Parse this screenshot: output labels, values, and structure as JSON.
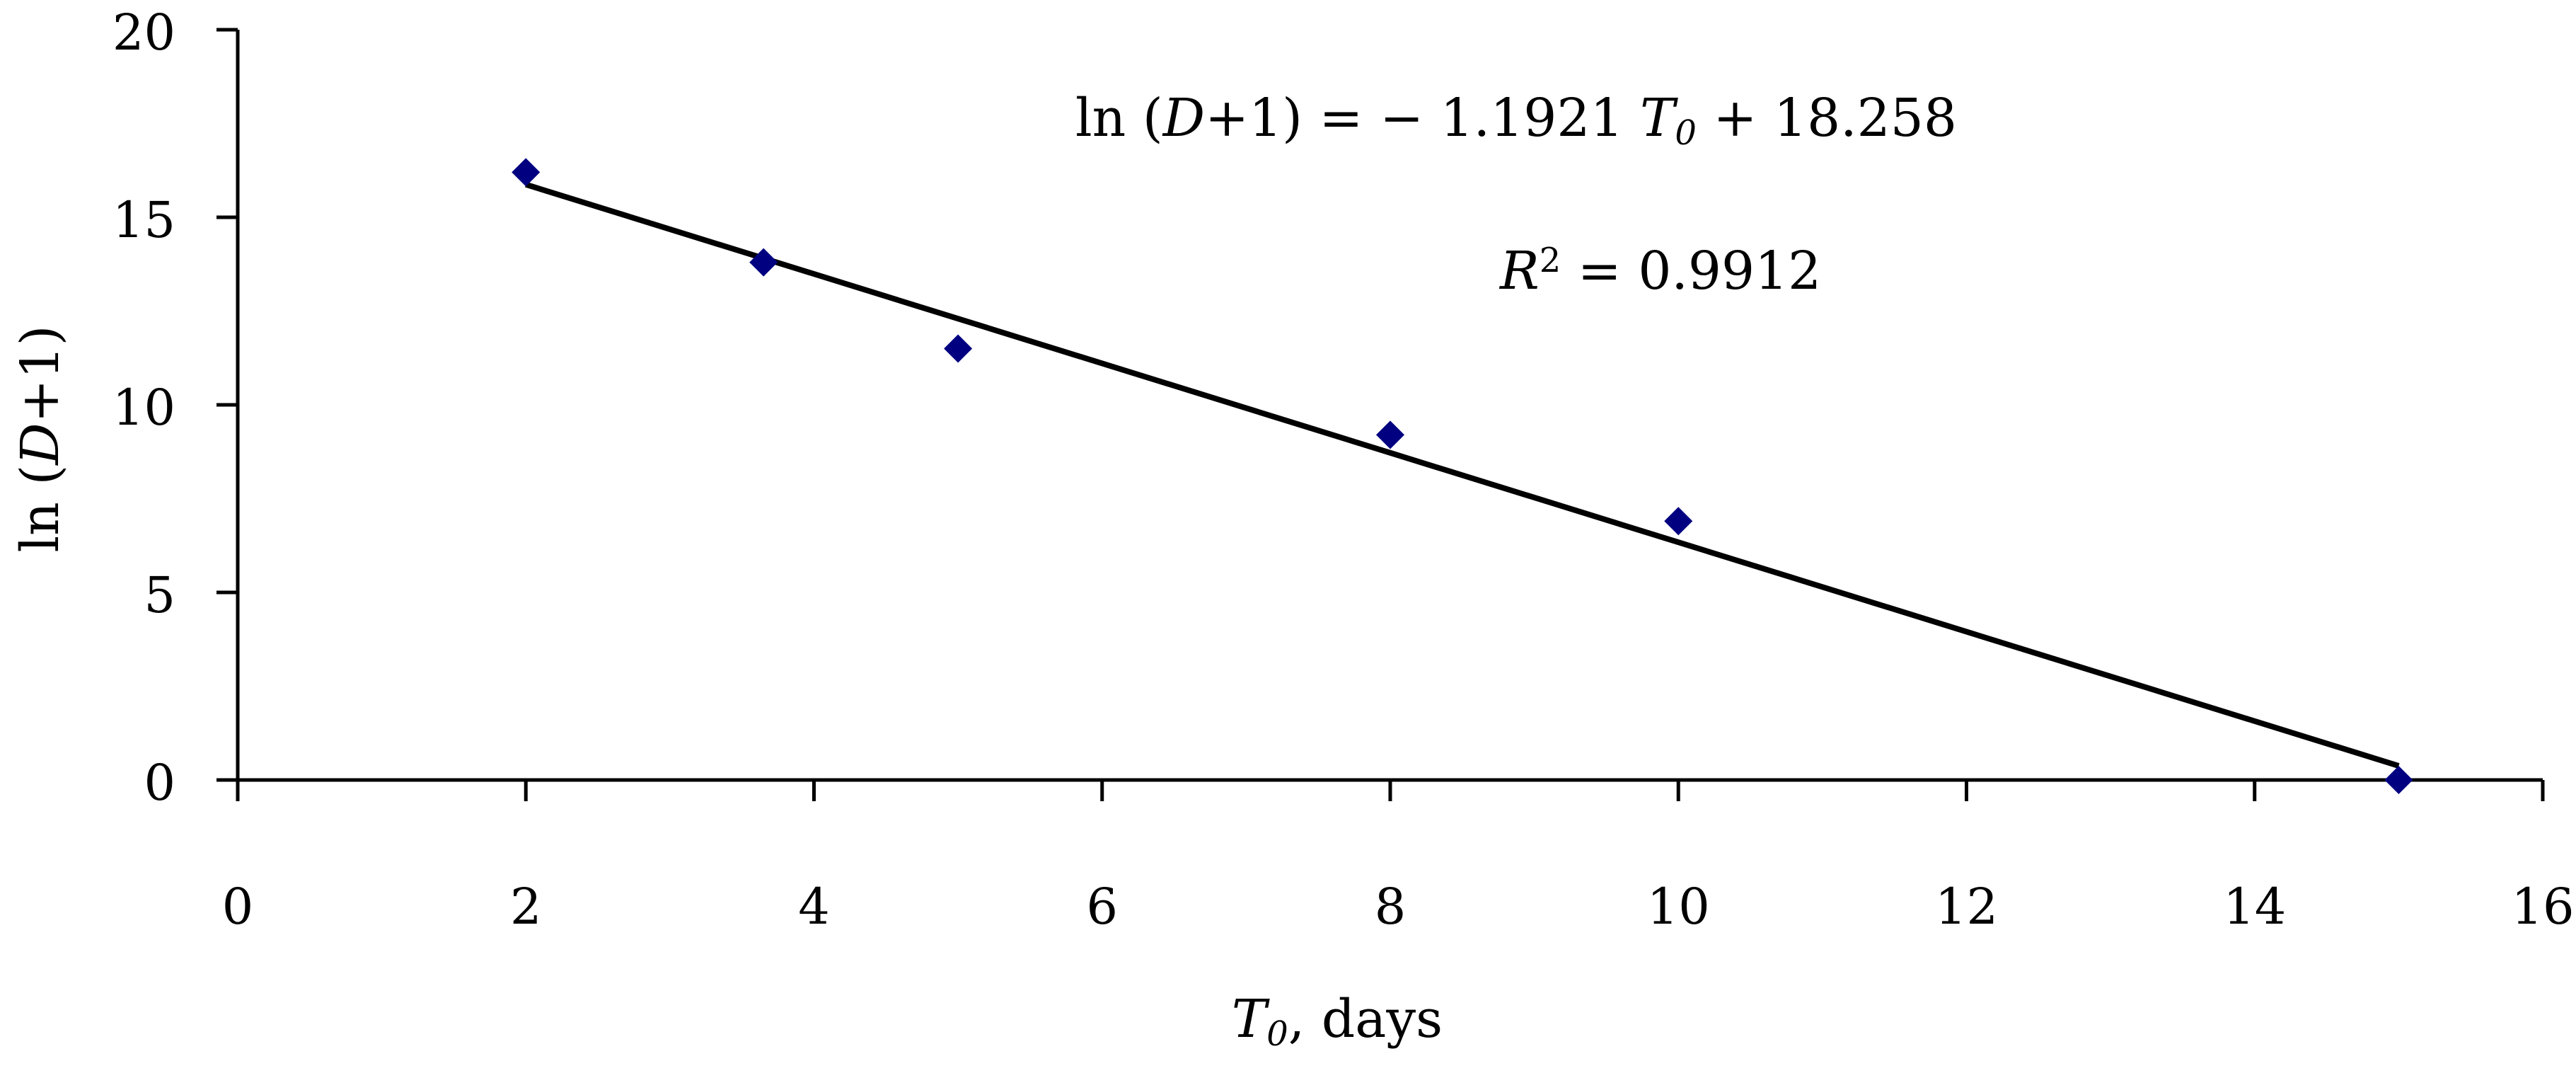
{
  "chart_data": {
    "type": "scatter",
    "xlabel": {
      "symbol": "T",
      "subscript": "0",
      "rest": ", days"
    },
    "ylabel": {
      "pre": "ln (",
      "var": "D",
      "post": "+1)"
    },
    "xlim": [
      0,
      16
    ],
    "ylim": [
      0,
      20
    ],
    "xticks": [
      "0",
      "2",
      "4",
      "6",
      "8",
      "10",
      "12",
      "14",
      "16"
    ],
    "yticks": [
      "0",
      "5",
      "10",
      "15",
      "20"
    ],
    "grid": false,
    "legend": "none",
    "points": [
      {
        "x": 2.0,
        "y": 16.2
      },
      {
        "x": 3.65,
        "y": 13.8
      },
      {
        "x": 5.0,
        "y": 11.5
      },
      {
        "x": 8.0,
        "y": 9.2
      },
      {
        "x": 10.0,
        "y": 6.9
      },
      {
        "x": 15.0,
        "y": 0.0
      }
    ],
    "trendline": {
      "slope": -1.1921,
      "intercept": 18.258,
      "x_from": 2.0,
      "x_to": 15.0
    },
    "equation": {
      "pre": "ln (",
      "var": "D",
      "mid": "+1) = − 1.1921 ",
      "xvar": "T",
      "xsub": "0",
      "post": " + 18.258"
    },
    "r2": {
      "var": "R",
      "sup": "2",
      "post": " = 0.9912"
    },
    "colors": {
      "marker": "#000080",
      "line": "#000000",
      "axis": "#000000"
    }
  }
}
